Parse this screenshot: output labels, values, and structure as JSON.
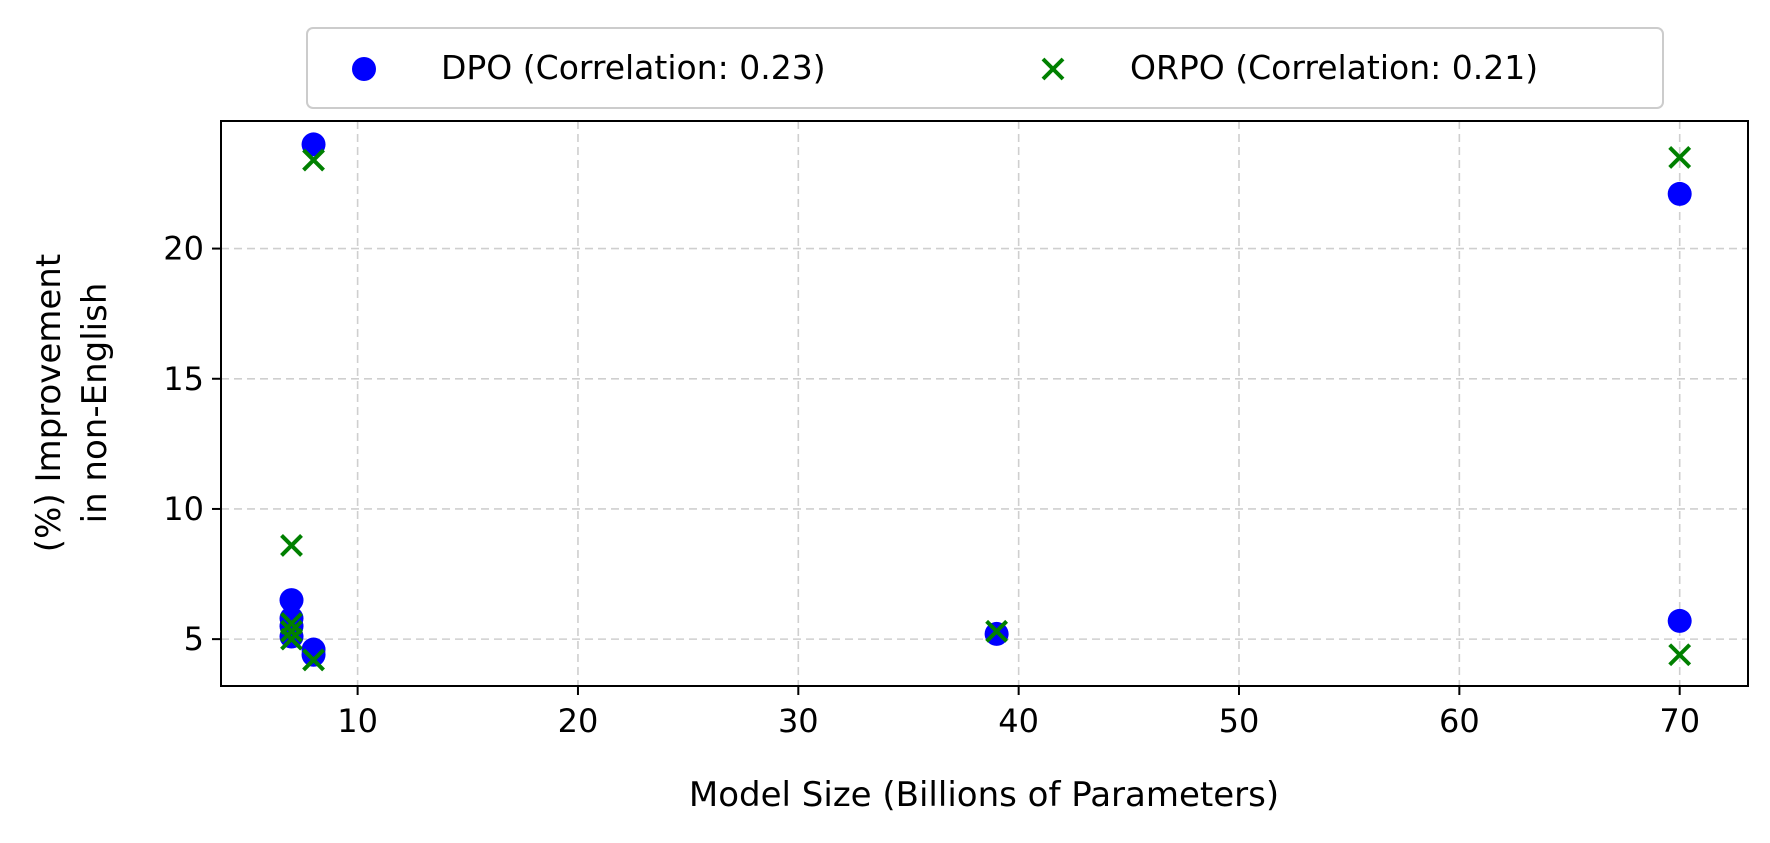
{
  "chart_data": {
    "type": "scatter",
    "xlabel": "Model Size (Billions of Parameters)",
    "ylabel_lines": [
      "(%) Improvement",
      "in non-English"
    ],
    "xlim": [
      3.8,
      73.1
    ],
    "ylim": [
      3.2,
      24.9
    ],
    "xticks": [
      10,
      20,
      30,
      40,
      50,
      60,
      70
    ],
    "yticks": [
      5,
      10,
      15,
      20
    ],
    "grid": true,
    "legend_position": "top-center-outside",
    "series": [
      {
        "name": "DPO (Correlation: 0.23)",
        "marker": "circle",
        "color": "#0000ff",
        "points": [
          {
            "x": 8,
            "y": 24.0
          },
          {
            "x": 7,
            "y": 6.5
          },
          {
            "x": 7,
            "y": 5.8
          },
          {
            "x": 7,
            "y": 5.5
          },
          {
            "x": 7,
            "y": 5.1
          },
          {
            "x": 8,
            "y": 4.6
          },
          {
            "x": 8,
            "y": 4.4
          },
          {
            "x": 39,
            "y": 5.2
          },
          {
            "x": 70,
            "y": 22.1
          },
          {
            "x": 70,
            "y": 5.7
          }
        ]
      },
      {
        "name": "ORPO (Correlation: 0.21)",
        "marker": "x",
        "color": "#008000",
        "points": [
          {
            "x": 8,
            "y": 23.4
          },
          {
            "x": 7,
            "y": 8.6
          },
          {
            "x": 7,
            "y": 5.6
          },
          {
            "x": 7,
            "y": 5.3
          },
          {
            "x": 7,
            "y": 5.0
          },
          {
            "x": 8,
            "y": 4.2
          },
          {
            "x": 39,
            "y": 5.3
          },
          {
            "x": 70,
            "y": 23.5
          },
          {
            "x": 70,
            "y": 4.4
          }
        ]
      }
    ]
  }
}
